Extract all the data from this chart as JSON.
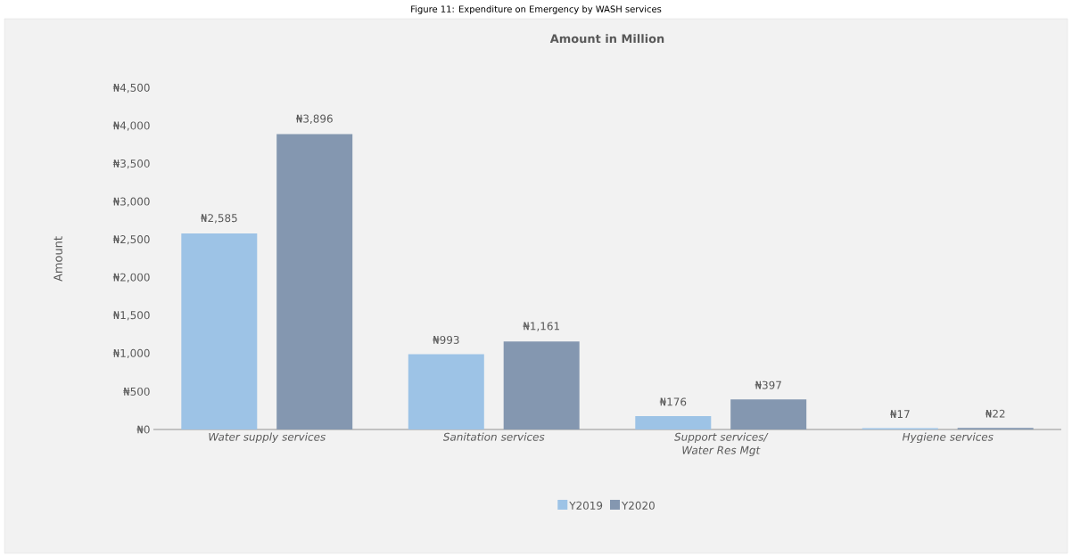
{
  "chart_data": {
    "type": "bar",
    "title": "Amount in Million",
    "ylabel": "Amount",
    "annotations": [
      "Figure 11: Expenditure on Emergency by WASH services"
    ],
    "categories": [
      "Water supply services",
      "Sanitation services",
      "Support services/ Water Res Mgt",
      "Hygiene services"
    ],
    "series": [
      {
        "name": "Y2019",
        "color": "#9dc3e6",
        "values": [
          2585,
          993,
          176,
          17
        ],
        "value_labels": [
          "₦2,585",
          "₦993",
          "₦176",
          "₦17"
        ]
      },
      {
        "name": "Y2020",
        "color": "#8497b0",
        "values": [
          3896,
          1161,
          397,
          22
        ],
        "value_labels": [
          "₦3,896",
          "₦1,161",
          "₦397",
          "₦22"
        ]
      }
    ],
    "ylim": [
      0,
      4500
    ],
    "yticks": [
      {
        "value": 0,
        "label": "₦0"
      },
      {
        "value": 500,
        "label": "₦500"
      },
      {
        "value": 1000,
        "label": "₦1,000"
      },
      {
        "value": 1500,
        "label": "₦1,500"
      },
      {
        "value": 2000,
        "label": "₦2,000"
      },
      {
        "value": 2500,
        "label": "₦2,500"
      },
      {
        "value": 3000,
        "label": "₦3,000"
      },
      {
        "value": 3500,
        "label": "₦3,500"
      },
      {
        "value": 4000,
        "label": "₦4,000"
      },
      {
        "value": 4500,
        "label": "₦4,500"
      }
    ],
    "legend": "bottom"
  }
}
